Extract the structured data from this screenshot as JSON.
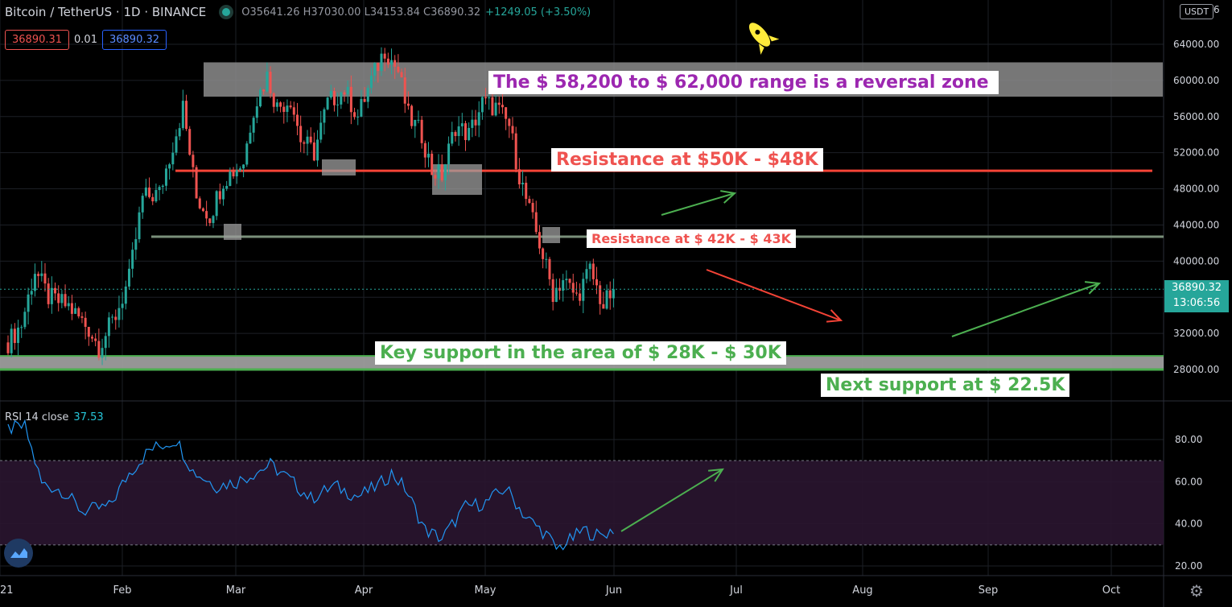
{
  "header": {
    "symbol": "Bitcoin / TetherUS · 1D · BINANCE",
    "open": "O35641.26",
    "high": "H37030.00",
    "low": "L34153.84",
    "close": "C36890.32",
    "change": "+1249.05 (+3.50%)"
  },
  "quotes": {
    "sell": "36890.31",
    "spread": "0.01",
    "buy": "36890.32"
  },
  "currency": "USDT",
  "price_tag": {
    "price": "36890.32",
    "countdown": "13:06:56"
  },
  "rsi": {
    "label": "RSI 14 close",
    "value": "37.53"
  },
  "annotations": {
    "reversal": "The $ 58,200 to $ 62,000 range is a reversal zone",
    "resistance_50": "Resistance at $50K - $48K",
    "resistance_42": "Resistance at $ 42K - $ 43K",
    "key_support": "Key support in the area of $ 28K - $ 30K",
    "next_support": "Next support at $ 22.5K"
  },
  "colors": {
    "up": "#26a69a",
    "down": "#ef5350",
    "purple": "#9c27b0",
    "green": "#4caf50",
    "rsi": "#2196f3"
  },
  "icons": [
    "rocket-icon",
    "tradingview-logo-icon",
    "gear-icon"
  ],
  "chart_data": {
    "type": "candlestick",
    "price_axis": {
      "ticks": [
        "64000.00",
        "60000.00",
        "56000.00",
        "52000.00",
        "48000.00",
        "44000.00",
        "40000.00",
        "36000.00",
        "32000.00",
        "28000.00"
      ],
      "top_tick_partial": "6"
    },
    "rsi_axis": {
      "ticks": [
        "80.00",
        "60.00",
        "40.00",
        "20.00"
      ]
    },
    "time_axis": [
      "21",
      "Feb",
      "Mar",
      "Apr",
      "May",
      "Jun",
      "Jul",
      "Aug",
      "Sep",
      "Oct"
    ],
    "levels": [
      {
        "name": "Reversal zone",
        "from": 58200,
        "to": 62000
      },
      {
        "name": "Resistance",
        "value": 50000
      },
      {
        "name": "Resistance",
        "value": 42700
      },
      {
        "name": "Key support",
        "from": 28000,
        "to": 29500
      }
    ],
    "rsi_bands": [
      30,
      70
    ],
    "price_keys": [
      {
        "d": 0,
        "p": 31000
      },
      {
        "d": 4,
        "p": 33000
      },
      {
        "d": 8,
        "p": 39000
      },
      {
        "d": 12,
        "p": 36000
      },
      {
        "d": 18,
        "p": 35000
      },
      {
        "d": 24,
        "p": 32500
      },
      {
        "d": 27,
        "p": 30500
      },
      {
        "d": 32,
        "p": 34000
      },
      {
        "d": 36,
        "p": 38000
      },
      {
        "d": 40,
        "p": 47000
      },
      {
        "d": 45,
        "p": 47500
      },
      {
        "d": 52,
        "p": 57000
      },
      {
        "d": 56,
        "p": 47000
      },
      {
        "d": 60,
        "p": 45000
      },
      {
        "d": 64,
        "p": 49000
      },
      {
        "d": 70,
        "p": 51000
      },
      {
        "d": 73,
        "p": 57000
      },
      {
        "d": 77,
        "p": 60500
      },
      {
        "d": 80,
        "p": 57000
      },
      {
        "d": 84,
        "p": 58000
      },
      {
        "d": 87,
        "p": 53500
      },
      {
        "d": 91,
        "p": 52000
      },
      {
        "d": 95,
        "p": 57500
      },
      {
        "d": 100,
        "p": 59000
      },
      {
        "d": 104,
        "p": 56000
      },
      {
        "d": 108,
        "p": 60000
      },
      {
        "d": 112,
        "p": 63500
      },
      {
        "d": 116,
        "p": 61000
      },
      {
        "d": 119,
        "p": 56000
      },
      {
        "d": 123,
        "p": 54000
      },
      {
        "d": 126,
        "p": 50000
      },
      {
        "d": 129,
        "p": 49500
      },
      {
        "d": 133,
        "p": 55000
      },
      {
        "d": 137,
        "p": 54000
      },
      {
        "d": 141,
        "p": 57500
      },
      {
        "d": 145,
        "p": 57000
      },
      {
        "d": 149,
        "p": 55000
      },
      {
        "d": 152,
        "p": 49500
      },
      {
        "d": 155,
        "p": 45500
      },
      {
        "d": 158,
        "p": 42000
      },
      {
        "d": 162,
        "p": 36500
      },
      {
        "d": 165,
        "p": 38000
      },
      {
        "d": 169,
        "p": 36000
      },
      {
        "d": 173,
        "p": 39000
      },
      {
        "d": 177,
        "p": 35000
      },
      {
        "d": 180,
        "p": 36890
      }
    ],
    "rsi_keys": [
      {
        "d": 0,
        "v": 85
      },
      {
        "d": 5,
        "v": 86
      },
      {
        "d": 10,
        "v": 59
      },
      {
        "d": 16,
        "v": 56
      },
      {
        "d": 22,
        "v": 46
      },
      {
        "d": 30,
        "v": 48
      },
      {
        "d": 36,
        "v": 64
      },
      {
        "d": 42,
        "v": 75
      },
      {
        "d": 50,
        "v": 80
      },
      {
        "d": 55,
        "v": 65
      },
      {
        "d": 62,
        "v": 58
      },
      {
        "d": 68,
        "v": 60
      },
      {
        "d": 78,
        "v": 68
      },
      {
        "d": 83,
        "v": 62
      },
      {
        "d": 90,
        "v": 52
      },
      {
        "d": 97,
        "v": 58
      },
      {
        "d": 104,
        "v": 53
      },
      {
        "d": 110,
        "v": 58
      },
      {
        "d": 114,
        "v": 64
      },
      {
        "d": 118,
        "v": 57
      },
      {
        "d": 124,
        "v": 37
      },
      {
        "d": 129,
        "v": 33
      },
      {
        "d": 136,
        "v": 48
      },
      {
        "d": 142,
        "v": 50
      },
      {
        "d": 148,
        "v": 57
      },
      {
        "d": 154,
        "v": 43
      },
      {
        "d": 160,
        "v": 35
      },
      {
        "d": 163,
        "v": 28
      },
      {
        "d": 167,
        "v": 32
      },
      {
        "d": 171,
        "v": 37
      },
      {
        "d": 176,
        "v": 34
      },
      {
        "d": 180,
        "v": 37.5
      }
    ]
  }
}
